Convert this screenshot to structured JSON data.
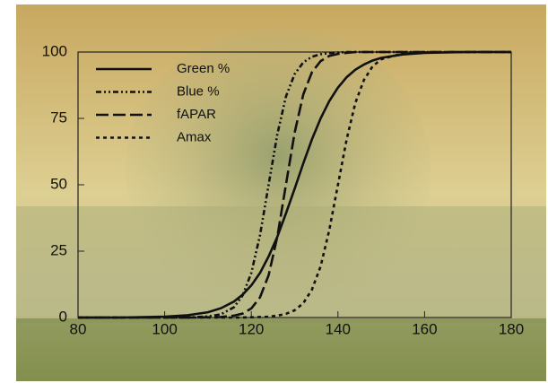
{
  "chart_data": {
    "type": "line",
    "x": [
      80,
      90,
      100,
      105,
      110,
      113,
      116,
      118,
      120,
      122,
      124,
      126,
      128,
      130,
      132,
      134,
      136,
      138,
      140,
      142,
      144,
      146,
      148,
      150,
      155,
      160,
      170,
      180
    ],
    "series": [
      {
        "name": "Green %",
        "color": "#111111",
        "dash": "none",
        "values": [
          0,
          0,
          0.3,
          0.8,
          2.0,
          3.5,
          6.0,
          8.6,
          12.1,
          16.8,
          23.0,
          30.4,
          39.2,
          48.5,
          58.1,
          67.1,
          75.0,
          81.5,
          86.6,
          90.5,
          93.3,
          95.3,
          96.8,
          97.8,
          99.1,
          99.7,
          100,
          100
        ]
      },
      {
        "name": "Blue %",
        "color": "#111111",
        "dash": "6 3 2 3 2 3",
        "values": [
          0,
          0,
          0,
          0,
          0.4,
          1.2,
          3.9,
          8.3,
          16.8,
          31.0,
          50,
          69.0,
          83.2,
          91.7,
          96.1,
          98.2,
          99.2,
          99.6,
          99.8,
          100,
          100,
          100,
          100,
          100,
          100,
          100,
          100,
          100
        ]
      },
      {
        "name": "fAPAR",
        "color": "#111111",
        "dash": "14 5",
        "values": [
          0,
          0,
          0,
          0,
          0.1,
          0.2,
          0.7,
          1.5,
          3.4,
          7.6,
          15.9,
          30.4,
          50,
          69.6,
          84.1,
          92.4,
          96.6,
          98.5,
          99.3,
          99.7,
          100,
          100,
          100,
          100,
          100,
          100,
          100,
          100
        ]
      },
      {
        "name": "Amax",
        "color": "#111111",
        "dash": "4 4",
        "values": [
          0,
          0,
          0,
          0,
          0,
          0,
          0,
          0,
          0.1,
          0.2,
          0.3,
          0.7,
          1.4,
          2.7,
          5.4,
          10.5,
          19.3,
          32.9,
          50,
          67.1,
          80.7,
          89.5,
          94.6,
          97.3,
          99.5,
          99.9,
          100,
          100
        ]
      }
    ],
    "xlim": [
      80,
      180
    ],
    "xticks": [
      80,
      100,
      120,
      140,
      160,
      180
    ],
    "ylim": [
      0,
      100
    ],
    "yticks": [
      0,
      25,
      50,
      75,
      100
    ],
    "legend": "upper-left"
  }
}
